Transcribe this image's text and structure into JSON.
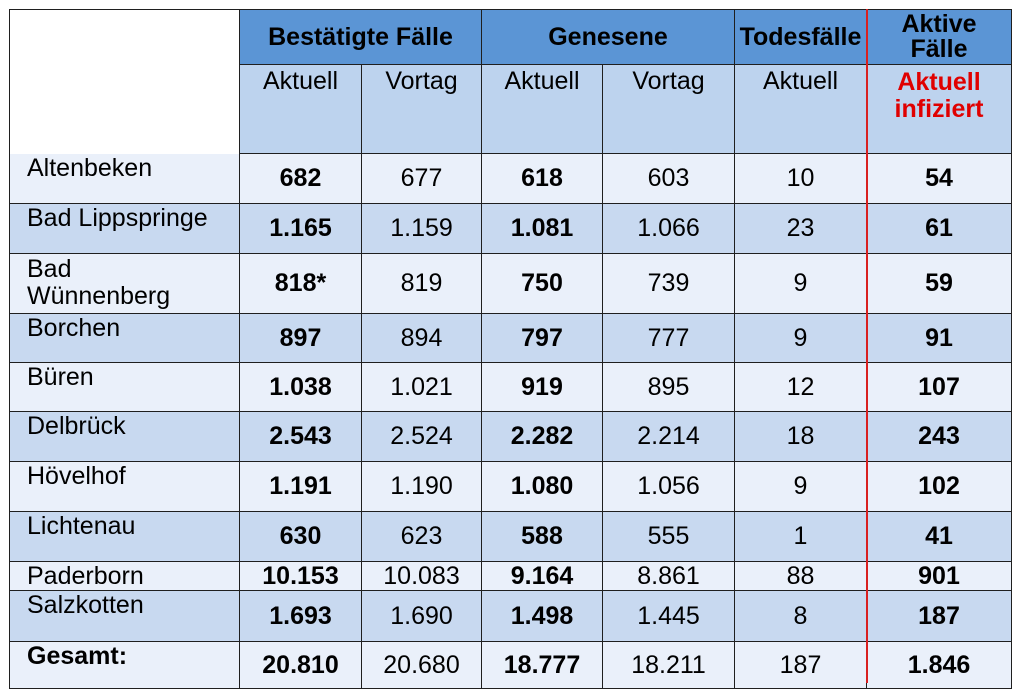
{
  "header": {
    "group_confirmed": "Bestätigte Fälle",
    "group_recovered": "Genesene",
    "group_deaths": "Todesfälle",
    "group_active": "Aktive Fälle",
    "sub_current": "Aktuell",
    "sub_previous": "Vortag",
    "sub_active_line1": "Aktuell",
    "sub_active_line2": "infiziert"
  },
  "rows": [
    {
      "name": "Altenbeken",
      "confirmed_current": "682",
      "confirmed_previous": "677",
      "recovered_current": "618",
      "recovered_previous": "603",
      "deaths": "10",
      "active": "54"
    },
    {
      "name": "Bad Lippspringe",
      "confirmed_current": "1.165",
      "confirmed_previous": "1.159",
      "recovered_current": "1.081",
      "recovered_previous": "1.066",
      "deaths": "23",
      "active": "61"
    },
    {
      "name_line1": "Bad",
      "name_line2": "Wünnenberg",
      "confirmed_current": "818*",
      "confirmed_previous": "819",
      "recovered_current": "750",
      "recovered_previous": "739",
      "deaths": "9",
      "active": "59"
    },
    {
      "name": "Borchen",
      "confirmed_current": "897",
      "confirmed_previous": "894",
      "recovered_current": "797",
      "recovered_previous": "777",
      "deaths": "9",
      "active": "91"
    },
    {
      "name": "Büren",
      "confirmed_current": "1.038",
      "confirmed_previous": "1.021",
      "recovered_current": "919",
      "recovered_previous": "895",
      "deaths": "12",
      "active": "107"
    },
    {
      "name": "Delbrück",
      "confirmed_current": "2.543",
      "confirmed_previous": "2.524",
      "recovered_current": "2.282",
      "recovered_previous": "2.214",
      "deaths": "18",
      "active": "243"
    },
    {
      "name": "Hövelhof",
      "confirmed_current": "1.191",
      "confirmed_previous": "1.190",
      "recovered_current": "1.080",
      "recovered_previous": "1.056",
      "deaths": "9",
      "active": "102"
    },
    {
      "name": "Lichtenau",
      "confirmed_current": "630",
      "confirmed_previous": "623",
      "recovered_current": "588",
      "recovered_previous": "555",
      "deaths": "1",
      "active": "41"
    },
    {
      "name": "Paderborn",
      "confirmed_current": "10.153",
      "confirmed_previous": "10.083",
      "recovered_current": "9.164",
      "recovered_previous": "8.861",
      "deaths": "88",
      "active": "901"
    },
    {
      "name": "Salzkotten",
      "confirmed_current": "1.693",
      "confirmed_previous": "1.690",
      "recovered_current": "1.498",
      "recovered_previous": "1.445",
      "deaths": "8",
      "active": "187"
    }
  ],
  "total": {
    "name": "Gesamt:",
    "confirmed_current": "20.810",
    "confirmed_previous": "20.680",
    "recovered_current": "18.777",
    "recovered_previous": "18.211",
    "deaths": "187",
    "active": "1.846"
  },
  "colors": {
    "header_group": "#5b95d5",
    "header_sub": "#bdd3ee",
    "row_light": "#eaf0fa",
    "row_dark": "#c8d9f0",
    "highlight_red": "#e00000"
  }
}
